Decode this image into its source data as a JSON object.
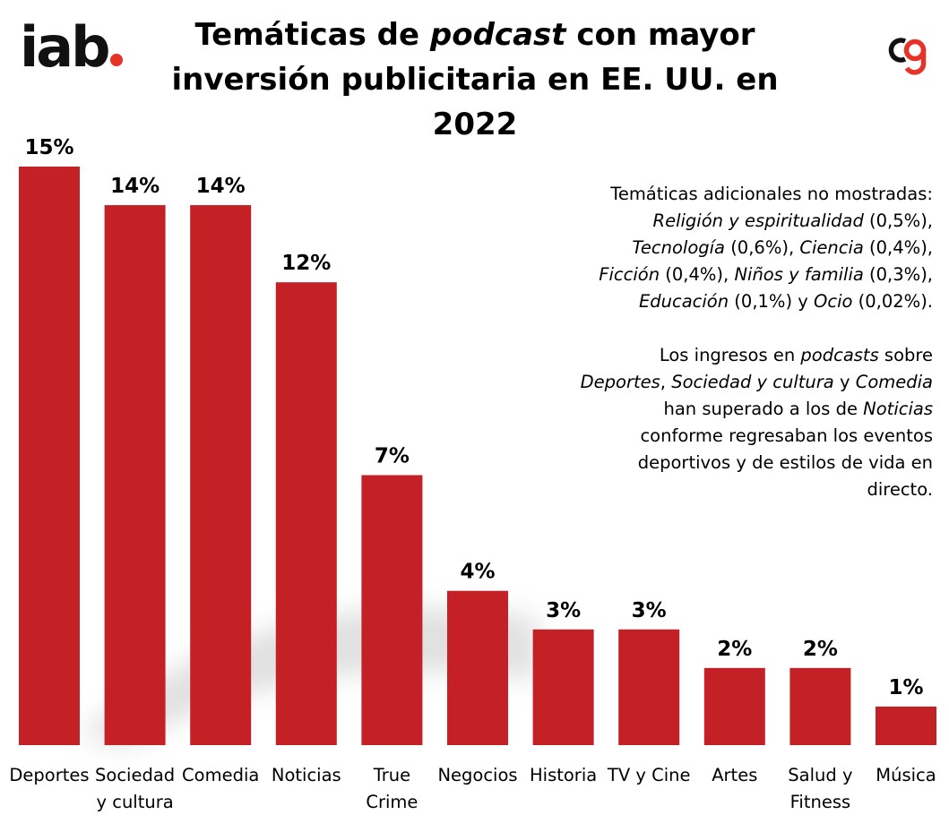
{
  "logo_left": {
    "text": "iab",
    "dot_color": "#e63328"
  },
  "logo_right": {
    "name": "cg-logo",
    "dark_color": "#111111",
    "accent_color": "#e63328"
  },
  "title": {
    "part1": "Temáticas de ",
    "italic": "podcast",
    "part2": " con mayor",
    "line2": "inversión publicitaria en EE. UU. en 2022"
  },
  "notes": {
    "block1": [
      {
        "text": "Temáticas adicionales no mostradas:",
        "italic": false,
        "br": true
      },
      {
        "text": "Religión y espiritualidad",
        "italic": true
      },
      {
        "text": " (0,5%),",
        "italic": false,
        "br": true
      },
      {
        "text": "Tecnología",
        "italic": true
      },
      {
        "text": " (0,6%), ",
        "italic": false
      },
      {
        "text": "Ciencia",
        "italic": true
      },
      {
        "text": " (0,4%),",
        "italic": false,
        "br": true
      },
      {
        "text": "Ficción",
        "italic": true
      },
      {
        "text": " (0,4%), ",
        "italic": false
      },
      {
        "text": "Niños y familia",
        "italic": true
      },
      {
        "text": " (0,3%),",
        "italic": false,
        "br": true
      },
      {
        "text": "Educación",
        "italic": true
      },
      {
        "text": " (0,1%) y ",
        "italic": false
      },
      {
        "text": "Ocio",
        "italic": true
      },
      {
        "text": " (0,02%).",
        "italic": false
      }
    ],
    "block2": [
      {
        "text": "Los ingresos en ",
        "italic": false
      },
      {
        "text": "podcasts",
        "italic": true
      },
      {
        "text": " sobre",
        "italic": false,
        "br": true
      },
      {
        "text": "Deportes",
        "italic": true
      },
      {
        "text": ", ",
        "italic": false
      },
      {
        "text": "Sociedad y cultura",
        "italic": true
      },
      {
        "text": " y ",
        "italic": false
      },
      {
        "text": "Comedia",
        "italic": true,
        "br": true
      },
      {
        "text": "han superado a los de ",
        "italic": false
      },
      {
        "text": "Noticias",
        "italic": true,
        "br": true
      },
      {
        "text": "conforme regresaban los eventos",
        "italic": false,
        "br": true
      },
      {
        "text": "deportivos y de estilos de vida en",
        "italic": false,
        "br": true
      },
      {
        "text": "directo.",
        "italic": false
      }
    ]
  },
  "chart_data": {
    "type": "bar",
    "categories": [
      [
        "Deportes"
      ],
      [
        "Sociedad",
        "y cultura"
      ],
      [
        "Comedia"
      ],
      [
        "Noticias"
      ],
      [
        "True",
        "Crime"
      ],
      [
        "Negocios"
      ],
      [
        "Historia"
      ],
      [
        "TV y Cine"
      ],
      [
        "Artes"
      ],
      [
        "Salud y",
        "Fitness"
      ],
      [
        "Música"
      ]
    ],
    "values": [
      15,
      14,
      14,
      12,
      7,
      4,
      3,
      3,
      2,
      2,
      1
    ],
    "value_labels": [
      "15%",
      "14%",
      "14%",
      "12%",
      "7%",
      "4%",
      "3%",
      "3%",
      "2%",
      "2%",
      "1%"
    ],
    "ylim": [
      0,
      15
    ],
    "bar_color": "#c42127",
    "grid": false,
    "legend": "none"
  }
}
